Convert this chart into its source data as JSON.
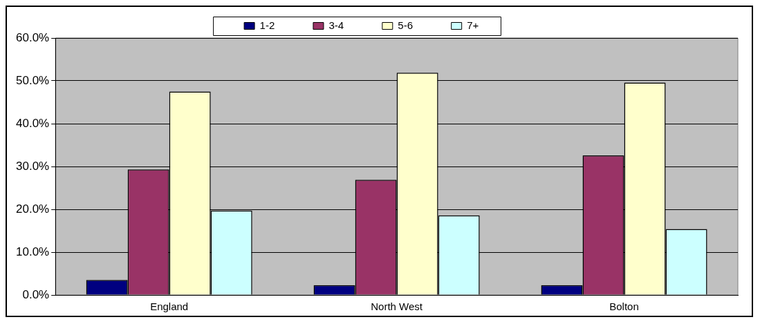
{
  "chart_data": {
    "type": "bar",
    "categories": [
      "England",
      "North West",
      "Bolton"
    ],
    "series": [
      {
        "name": "1-2",
        "color": "#000080",
        "values": [
          3.5,
          2.3,
          2.3
        ]
      },
      {
        "name": "3-4",
        "color": "#993366",
        "values": [
          29.3,
          26.9,
          32.6
        ]
      },
      {
        "name": "5-6",
        "color": "#ffffcc",
        "values": [
          47.5,
          51.9,
          49.6
        ]
      },
      {
        "name": "7+",
        "color": "#ccffff",
        "values": [
          19.7,
          18.6,
          15.4
        ]
      }
    ],
    "ylim": [
      0,
      60
    ],
    "yticks": [
      {
        "value": 0,
        "label": "0.0%"
      },
      {
        "value": 10,
        "label": "10.0%"
      },
      {
        "value": 20,
        "label": "20.0%"
      },
      {
        "value": 30,
        "label": "30.0%"
      },
      {
        "value": 40,
        "label": "40.0%"
      },
      {
        "value": 50,
        "label": "50.0%"
      },
      {
        "value": 60,
        "label": "60.0%"
      }
    ],
    "grid": "y",
    "legend": "top"
  }
}
